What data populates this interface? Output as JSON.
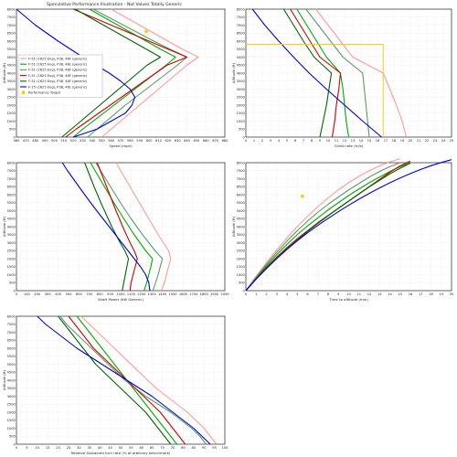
{
  "title": "Speculative Performance Illustration - Not Values Totally Generic",
  "colors": [
    "#ff9999",
    "#00aa00",
    "#5b9a6a",
    "#cc0000",
    "#006600",
    "#0000dd"
  ],
  "legend": [
    "F-51 (1625 Eng), P38, 46F (generic)",
    "F-51 (1625 Eng), P38, 46L (generic)",
    "F-51 (1625 Eng), P38, 46F (generic)",
    "F-51 (1625 Eng), P38, 46F (generic)",
    "F-51 (1625 Eng), P38, 46F (generic)",
    "F-15 (1625 Eng), P38, 46L (generic)"
  ],
  "target_label": "Performance Target",
  "target_color": "#ffcc00",
  "chart_data": [
    {
      "type": "line",
      "xlabel": "Speed (mph)",
      "ylabel": "Altitude (ft)",
      "xlim": [
        460,
        680
      ],
      "ylim": [
        0,
        8000
      ],
      "xticks": [
        460,
        470,
        480,
        490,
        500,
        510,
        520,
        530,
        540,
        550,
        560,
        570,
        580,
        590,
        600,
        610,
        620,
        630,
        640,
        650,
        660,
        670,
        680
      ],
      "yticks": [
        0,
        500,
        1000,
        1500,
        2000,
        2500,
        3000,
        3500,
        4000,
        4500,
        5000,
        5500,
        6000,
        6500,
        7000,
        7500,
        8000
      ],
      "y": [
        0,
        500,
        1000,
        1500,
        2000,
        2500,
        3000,
        3500,
        4000,
        4500,
        5000,
        5500,
        6000,
        6500,
        7000,
        7500,
        8000
      ],
      "series": [
        {
          "values": [
            550,
            560,
            570,
            580,
            590,
            600,
            610,
            620,
            630,
            640,
            652,
            635,
            620,
            605,
            590,
            575,
            560
          ]
        },
        {
          "values": [
            520,
            530,
            541,
            552,
            563,
            574,
            585,
            596,
            607,
            618,
            628,
            612,
            597,
            582,
            567,
            552,
            537
          ]
        },
        {
          "values": [
            535,
            545,
            555,
            565,
            575,
            586,
            597,
            608,
            619,
            630,
            640,
            622,
            605,
            589,
            573,
            557,
            541
          ]
        },
        {
          "values": [
            512,
            523,
            535,
            547,
            559,
            571,
            583,
            595,
            607,
            619,
            640,
            620,
            600,
            580,
            560,
            540,
            520
          ]
        },
        {
          "values": [
            508,
            518,
            528,
            538,
            548,
            558,
            568,
            578,
            588,
            598,
            612,
            597,
            582,
            567,
            552,
            537,
            522
          ]
        },
        {
          "values": [
            520,
            545,
            560,
            575,
            582,
            585,
            580,
            570,
            558,
            544,
            530,
            517,
            504,
            492,
            480,
            470,
            460
          ]
        }
      ],
      "target": {
        "x": 597,
        "y": 6600
      }
    },
    {
      "type": "line",
      "xlabel": "Climb rate (m/s)",
      "ylabel": "Altitude (ft)",
      "xlim": [
        0,
        25
      ],
      "ylim": [
        0,
        8000
      ],
      "xticks": [
        0,
        1,
        2,
        3,
        4,
        5,
        6,
        7,
        8,
        9,
        10,
        11,
        12,
        13,
        14,
        15,
        16,
        17,
        18,
        19,
        20,
        21,
        22,
        23,
        24,
        25
      ],
      "yticks": [
        0,
        500,
        1000,
        1500,
        2000,
        2500,
        3000,
        3500,
        4000,
        4500,
        5000,
        5500,
        6000,
        6500,
        7000,
        7500,
        8000
      ],
      "y": [
        0,
        500,
        1000,
        1500,
        2000,
        2500,
        3000,
        3500,
        4000,
        4500,
        5000,
        5500,
        6000,
        6500,
        7000,
        7500,
        8000
      ],
      "series": [
        {
          "y": [
            0,
            1000,
            2000,
            3000,
            4000,
            5000,
            6000,
            7000,
            8000
          ],
          "values": [
            19.5,
            19.0,
            18.3,
            17.5,
            16.7,
            13.0,
            11.5,
            10.0,
            8.5
          ]
        },
        {
          "y": [
            0,
            1000,
            2000,
            3000,
            4000,
            5000,
            6000,
            7000,
            8000
          ],
          "values": [
            12.5,
            12.2,
            12.0,
            11.8,
            11.5,
            9.8,
            8.6,
            7.4,
            6.2
          ]
        },
        {
          "y": [
            0,
            1000,
            2000,
            3000,
            4000,
            5000,
            6000,
            7000,
            8000
          ],
          "values": [
            15.0,
            14.8,
            14.6,
            14.4,
            14.2,
            11.8,
            10.3,
            8.8,
            7.3
          ]
        },
        {
          "y": [
            0,
            1000,
            2000,
            3000,
            4000,
            5000,
            6000,
            7000,
            8000
          ],
          "values": [
            10.5,
            10.8,
            11.0,
            11.3,
            11.5,
            9.0,
            7.8,
            6.6,
            5.4
          ]
        },
        {
          "y": [
            0,
            1000,
            2000,
            3000,
            4000,
            5000,
            6000,
            7000,
            8000
          ],
          "values": [
            9.0,
            9.4,
            9.8,
            10.1,
            10.4,
            8.3,
            7.0,
            5.8,
            4.6
          ]
        },
        {
          "y": [
            0,
            1000,
            2000,
            3000,
            4000,
            5000,
            6000,
            7000,
            8000
          ],
          "values": [
            16.5,
            14.2,
            12.0,
            9.8,
            7.7,
            5.8,
            4.0,
            2.3,
            0.8
          ]
        }
      ],
      "target_line": {
        "x": 16.7,
        "y": 5800
      }
    },
    {
      "type": "line",
      "xlabel": "Shaft Power (kW Generic)",
      "ylabel": "Altitude (ft)",
      "xlim": [
        0,
        2000
      ],
      "ylim": [
        0,
        8000
      ],
      "xticks": [
        0,
        100,
        200,
        300,
        400,
        500,
        600,
        700,
        800,
        900,
        1000,
        1100,
        1200,
        1300,
        1400,
        1500,
        1600,
        1700,
        1800,
        1900,
        2000
      ],
      "yticks": [
        0,
        500,
        1000,
        1500,
        2000,
        2500,
        3000,
        3500,
        4000,
        4500,
        5000,
        5500,
        6000,
        6500,
        7000,
        7500,
        8000
      ],
      "y": [
        0,
        500,
        1000,
        1500,
        2000,
        2500,
        3000,
        3500,
        4000,
        4500,
        5000,
        5500,
        6000,
        6500,
        7000,
        7500,
        8000
      ],
      "series": [
        {
          "values": [
            1390,
            1420,
            1440,
            1460,
            1480,
            1460,
            1410,
            1360,
            1315,
            1270,
            1225,
            1180,
            1135,
            1090,
            1045,
            1000,
            955
          ]
        },
        {
          "values": [
            1225,
            1250,
            1270,
            1290,
            1305,
            1240,
            1185,
            1130,
            1080,
            1030,
            982,
            935,
            890,
            845,
            800,
            755,
            710
          ]
        },
        {
          "values": [
            1310,
            1335,
            1360,
            1380,
            1400,
            1330,
            1270,
            1210,
            1155,
            1100,
            1048,
            998,
            950,
            902,
            855,
            808,
            762
          ]
        },
        {
          "values": [
            1090,
            1100,
            1120,
            1140,
            1160,
            1130,
            1090,
            1055,
            1020,
            988,
            955,
            925,
            895,
            865,
            835,
            805,
            775
          ]
        },
        {
          "values": [
            1015,
            1030,
            1045,
            1060,
            1075,
            1040,
            995,
            955,
            915,
            880,
            845,
            810,
            778,
            745,
            715,
            685,
            655
          ]
        },
        {
          "values": [
            1280,
            1270,
            1240,
            1190,
            1130,
            1070,
            1010,
            950,
            890,
            830,
            770,
            712,
            655,
            600,
            545,
            490,
            440
          ]
        }
      ]
    },
    {
      "type": "line",
      "xlabel": "Time to altitude (min)",
      "ylabel": "Altitude (ft)",
      "xlim": [
        0,
        20
      ],
      "ylim": [
        0,
        8000
      ],
      "xticks": [
        0,
        1,
        2,
        3,
        4,
        5,
        6,
        7,
        8,
        9,
        10,
        11,
        12,
        13,
        14,
        15,
        16,
        17,
        18,
        19,
        20
      ],
      "yticks": [
        0,
        500,
        1000,
        1500,
        2000,
        2500,
        3000,
        3500,
        4000,
        4500,
        5000,
        5500,
        6000,
        6500,
        7000,
        7500,
        8000
      ],
      "x": [
        0,
        1,
        2,
        3,
        4,
        5,
        6,
        7,
        8,
        9,
        10,
        11,
        12,
        13,
        14,
        15,
        16,
        17,
        18,
        19,
        20
      ],
      "series": [
        {
          "values": [
            0,
            900,
            1750,
            2550,
            3300,
            4000,
            4650,
            5250,
            5800,
            6300,
            6750,
            7150,
            7500,
            7800,
            8050,
            8250,
            null,
            null,
            null,
            null,
            null
          ]
        },
        {
          "values": [
            0,
            800,
            1550,
            2250,
            2900,
            3500,
            4050,
            4550,
            5050,
            5500,
            5950,
            6350,
            6750,
            7100,
            7450,
            7750,
            8000,
            null,
            null,
            null,
            null
          ]
        },
        {
          "values": [
            0,
            850,
            1650,
            2400,
            3100,
            3750,
            4350,
            4900,
            5400,
            5850,
            6300,
            6700,
            7100,
            7450,
            7750,
            8000,
            null,
            null,
            null,
            null,
            null
          ]
        },
        {
          "values": [
            0,
            750,
            1450,
            2100,
            2700,
            3250,
            3750,
            4250,
            4700,
            5150,
            5600,
            6050,
            6500,
            6950,
            7400,
            7800,
            8100,
            null,
            null,
            null,
            null
          ]
        },
        {
          "values": [
            0,
            730,
            1400,
            2030,
            2620,
            3170,
            3700,
            4200,
            4680,
            5150,
            5600,
            6050,
            6480,
            6900,
            7300,
            7650,
            7980,
            null,
            null,
            null,
            null
          ]
        },
        {
          "values": [
            0,
            720,
            1380,
            2000,
            2580,
            3120,
            3620,
            4080,
            4520,
            4940,
            5340,
            5720,
            6080,
            6420,
            6740,
            7040,
            7320,
            7580,
            7810,
            8010,
            8190
          ]
        }
      ],
      "target": {
        "x": 5.5,
        "y": 5900
      }
    },
    {
      "type": "line",
      "xlabel": "Relative Sustained turn rate (% of arbitrary benchmark)",
      "ylabel": "Altitude (ft)",
      "xlim": [
        0,
        100
      ],
      "ylim": [
        0,
        8000
      ],
      "xticks": [
        0,
        5,
        10,
        15,
        20,
        25,
        30,
        35,
        40,
        45,
        50,
        55,
        60,
        65,
        70,
        75,
        80,
        85,
        90,
        95,
        100
      ],
      "yticks": [
        0,
        500,
        1000,
        1500,
        2000,
        2500,
        3000,
        3500,
        4000,
        4500,
        5000,
        5500,
        6000,
        6500,
        7000,
        7500,
        8000
      ],
      "y": [
        0,
        500,
        1000,
        1500,
        2000,
        2500,
        3000,
        3500,
        4000,
        4500,
        5000,
        5500,
        6000,
        6500,
        7000,
        7500,
        8000
      ],
      "series": [
        {
          "values": [
            96,
            93,
            90,
            86,
            82,
            77,
            72,
            67,
            63,
            59,
            55,
            51,
            47,
            43,
            39,
            35,
            31
          ]
        },
        {
          "values": [
            77,
            74,
            71,
            68,
            65,
            62,
            59,
            56,
            53,
            50,
            47,
            44,
            41,
            38,
            35,
            32,
            29
          ]
        },
        {
          "values": [
            91,
            88,
            84,
            79,
            74,
            68,
            62,
            57,
            52,
            48,
            44,
            40,
            36,
            32,
            28,
            24,
            21
          ]
        },
        {
          "values": [
            81,
            78,
            75,
            72,
            69,
            65,
            61,
            57,
            53,
            49,
            45,
            41,
            37,
            34,
            31,
            28,
            25
          ]
        },
        {
          "values": [
            74,
            71,
            68,
            65,
            62,
            58,
            54,
            50,
            46,
            42,
            38,
            35,
            32,
            29,
            26,
            23,
            20
          ]
        },
        {
          "values": [
            93,
            89,
            85,
            80,
            75,
            70,
            65,
            59,
            53,
            47,
            41,
            35,
            29,
            24,
            19,
            14,
            10
          ]
        }
      ]
    }
  ]
}
